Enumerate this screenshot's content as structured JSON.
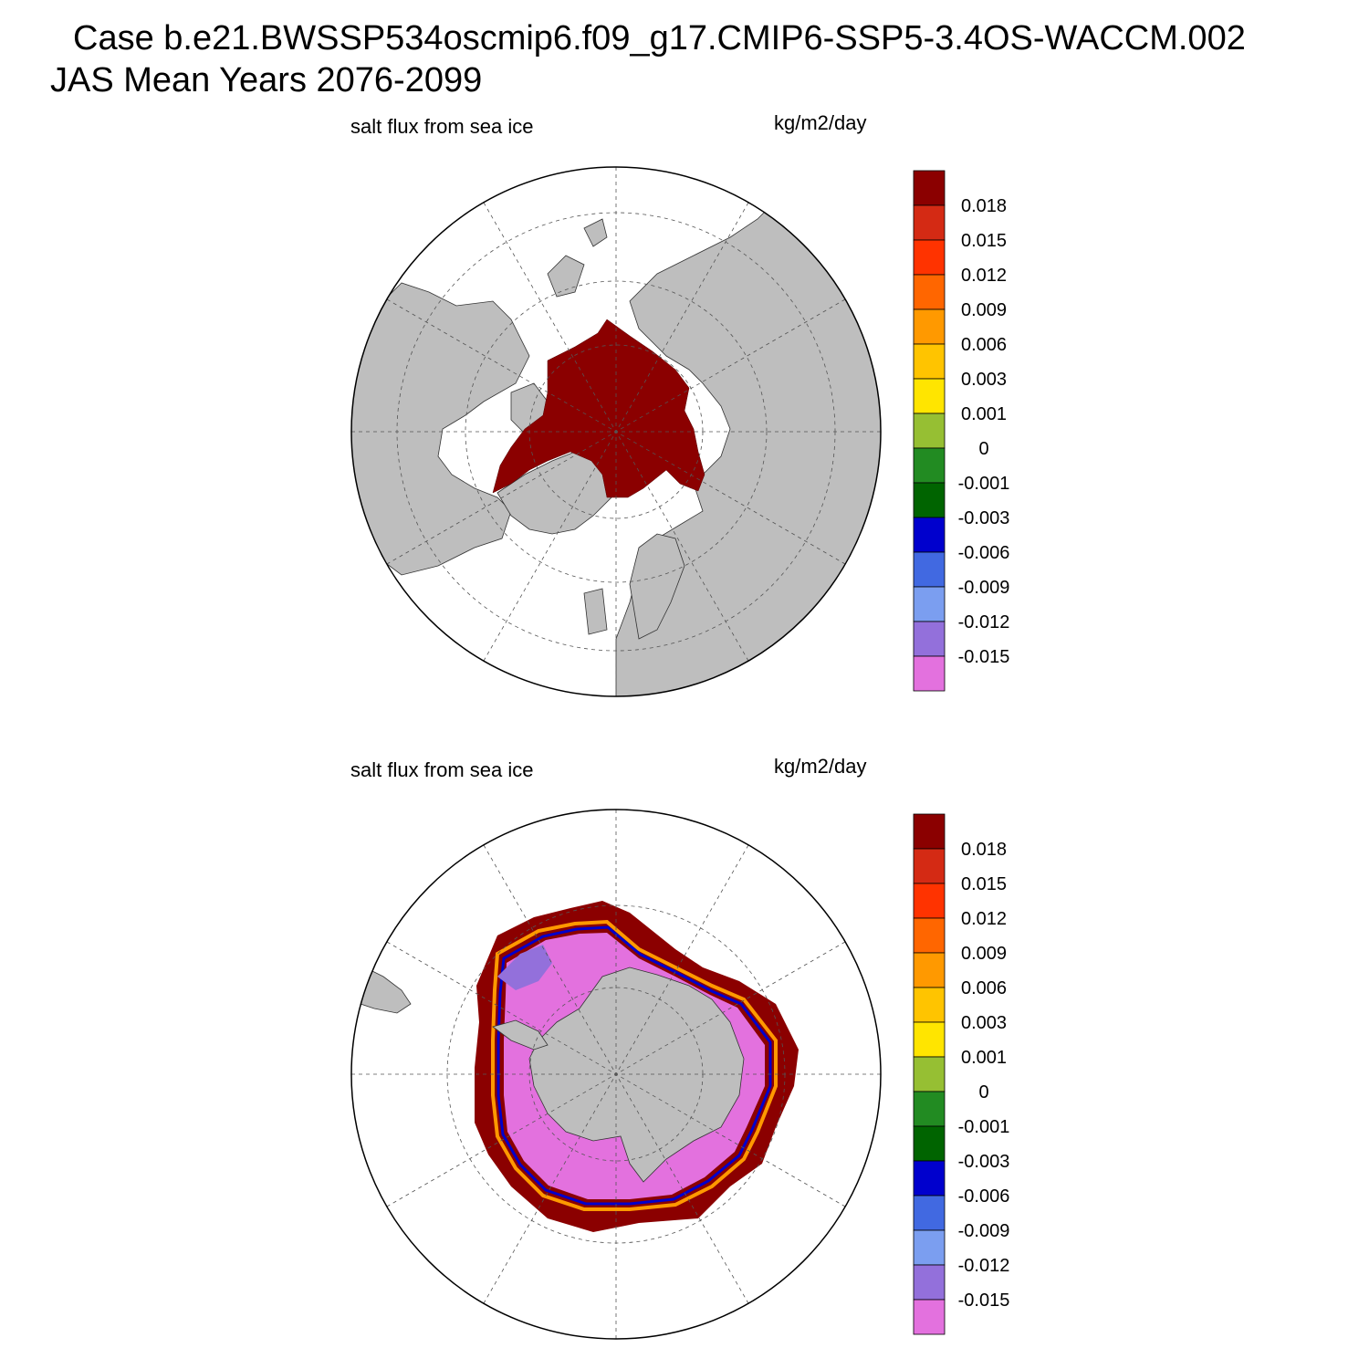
{
  "header": {
    "line1": "Case b.e21.BWSSP534oscmip6.f09_g17.CMIP6-SSP5-3.4OS-WACCM.002",
    "line2": "JAS Mean   Years 2076-2099"
  },
  "chart_data": [
    {
      "type": "heatmap",
      "projection": "polar stereographic (north)",
      "title": "salt flux from sea ice",
      "units": "kg/m2/day",
      "colorbar": {
        "colors": [
          "#8b0000",
          "#d42a14",
          "#ff3300",
          "#ff6600",
          "#ff9900",
          "#ffc400",
          "#ffe500",
          "#96bf33",
          "#228b22",
          "#006400",
          "#0000cd",
          "#4169e1",
          "#7b9ef0",
          "#9370db",
          "#e371de"
        ],
        "tick_labels": [
          "0.018",
          "0.015",
          "0.012",
          "0.009",
          "0.006",
          "0.003",
          "0.001",
          "0",
          "-0.001",
          "-0.003",
          "-0.006",
          "-0.009",
          "-0.012",
          "-0.015"
        ]
      },
      "summary": "Arctic sea ice region largely > 0.018 (dark red); open ocean unshaded"
    },
    {
      "type": "heatmap",
      "projection": "polar stereographic (south)",
      "title": "salt flux from sea ice",
      "units": "kg/m2/day",
      "colorbar": {
        "colors": [
          "#8b0000",
          "#d42a14",
          "#ff3300",
          "#ff6600",
          "#ff9900",
          "#ffc400",
          "#ffe500",
          "#96bf33",
          "#228b22",
          "#006400",
          "#0000cd",
          "#4169e1",
          "#7b9ef0",
          "#9370db",
          "#e371de"
        ],
        "tick_labels": [
          "0.018",
          "0.015",
          "0.012",
          "0.009",
          "0.006",
          "0.003",
          "0.001",
          "0",
          "-0.001",
          "-0.003",
          "-0.006",
          "-0.009",
          "-0.012",
          "-0.015"
        ]
      },
      "summary": "Antarctic pack ice interior < -0.015 (pink); outer ice edge band > 0.018 (dark red)"
    }
  ],
  "style": {
    "land": "#bebebe",
    "outline": "#000000"
  }
}
